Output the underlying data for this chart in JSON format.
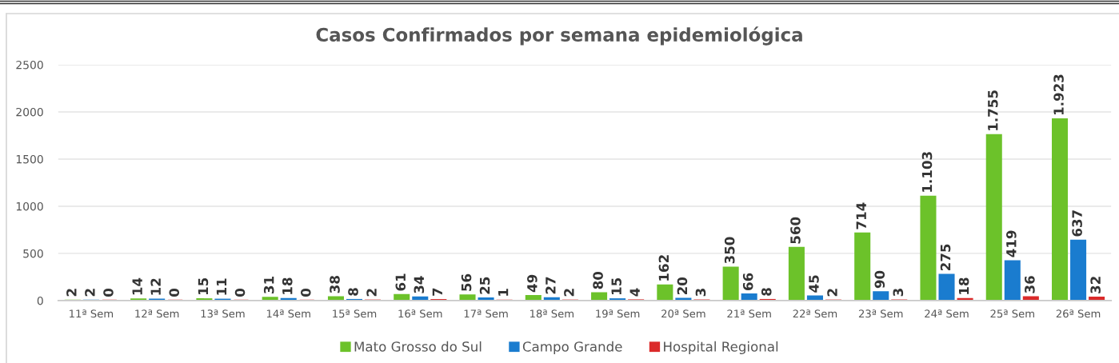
{
  "chart_data": {
    "type": "bar",
    "title": "Casos Confirmados por semana epidemiológica",
    "categories": [
      "11ª Sem",
      "12ª Sem",
      "13ª Sem",
      "14ª Sem",
      "15ª Sem",
      "16ª Sem",
      "17ª Sem",
      "18ª Sem",
      "19ª Sem",
      "20ª Sem",
      "21ª Sem",
      "22ª Sem",
      "23ª Sem",
      "24ª Sem",
      "25ª Sem",
      "26ª Sem"
    ],
    "series": [
      {
        "name": "Mato Grosso do Sul",
        "color": "#6cc22a",
        "values": [
          2,
          14,
          15,
          31,
          38,
          61,
          56,
          49,
          80,
          162,
          350,
          560,
          714,
          1103,
          1755,
          1923
        ],
        "value_labels": [
          "2",
          "14",
          "15",
          "31",
          "38",
          "61",
          "56",
          "49",
          "80",
          "162",
          "350",
          "560",
          "714",
          "1.103",
          "1.755",
          "1.923"
        ]
      },
      {
        "name": "Campo Grande",
        "color": "#1a7ccf",
        "values": [
          2,
          12,
          11,
          18,
          8,
          34,
          25,
          27,
          15,
          20,
          66,
          45,
          90,
          275,
          419,
          637
        ],
        "value_labels": [
          "2",
          "12",
          "11",
          "18",
          "8",
          "34",
          "25",
          "27",
          "15",
          "20",
          "66",
          "45",
          "90",
          "275",
          "419",
          "637"
        ]
      },
      {
        "name": "Hospital Regional",
        "color": "#db2a2a",
        "values": [
          0,
          0,
          0,
          0,
          2,
          7,
          1,
          2,
          4,
          3,
          8,
          2,
          3,
          18,
          36,
          32
        ],
        "value_labels": [
          "0",
          "0",
          "0",
          "0",
          "2",
          "7",
          "1",
          "2",
          "4",
          "3",
          "8",
          "2",
          "3",
          "18",
          "36",
          "32"
        ]
      }
    ],
    "ylim": [
      0,
      2500
    ],
    "yticks": [
      0,
      500,
      1000,
      1500,
      2000,
      2500
    ],
    "grid": "y",
    "legend": "bottom"
  }
}
